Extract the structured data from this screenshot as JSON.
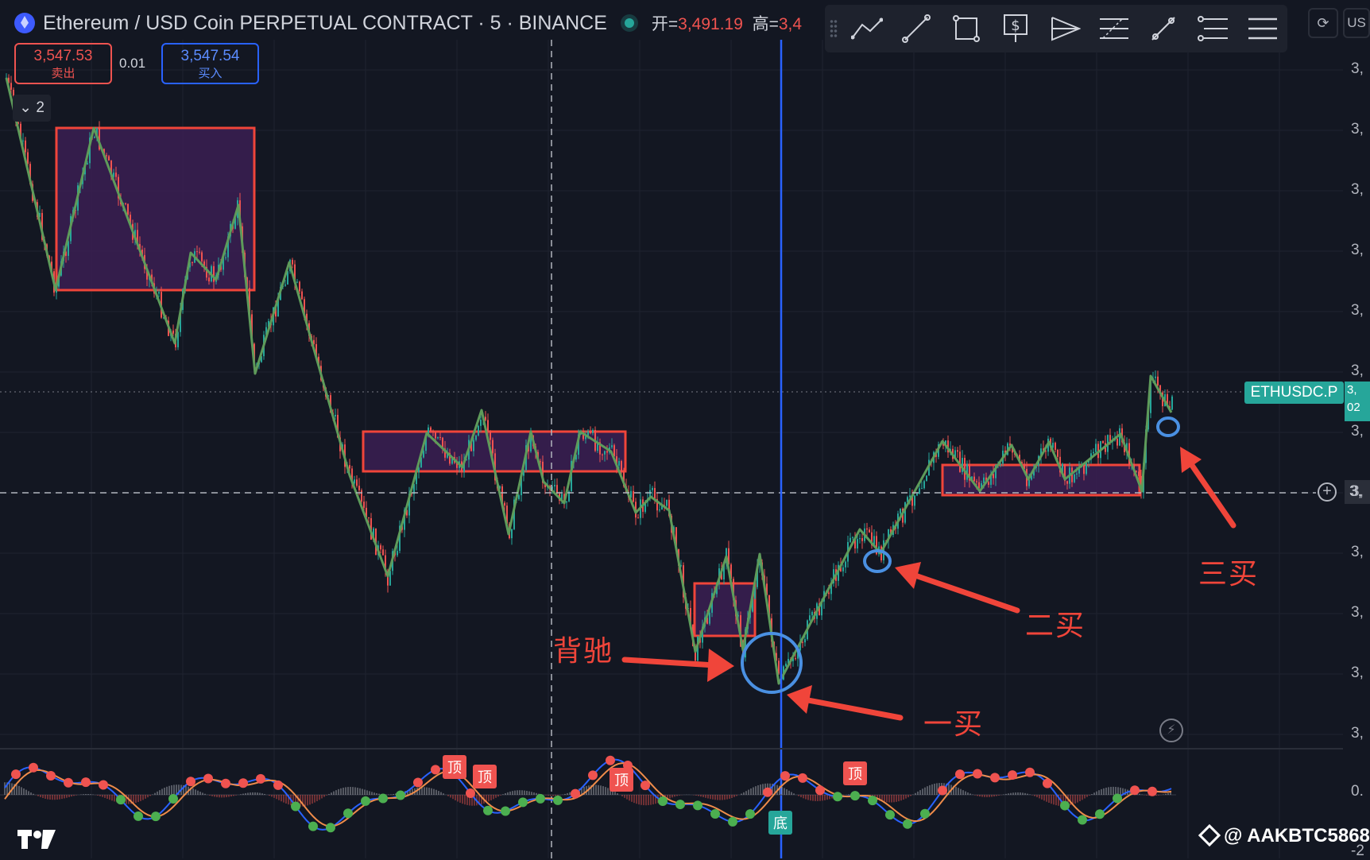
{
  "header": {
    "symbol_title": "Ethereum / USD Coin PERPETUAL CONTRACT · 5 · BINANCE",
    "ohlc_open_label": "开=",
    "ohlc_open_value": "3,491.19",
    "ohlc_high_label": "高=",
    "ohlc_high_value": "3,4"
  },
  "trade": {
    "sell_price": "3,547.53",
    "sell_label": "卖出",
    "spread": "0.01",
    "buy_price": "3,547.54",
    "buy_label": "买入"
  },
  "pane_collapse_label": "2",
  "toolbar": {
    "items": [
      "trend-line-icon",
      "ray-icon",
      "rectangle-icon",
      "long-position-icon",
      "pitchfork-icon",
      "fib-retracement-icon",
      "measure-icon",
      "fib-channel-icon",
      "more-menu-icon"
    ]
  },
  "top_right": {
    "truncated_label": "US"
  },
  "price_axis": {
    "ticks": [
      "3,",
      "3,",
      "3,",
      "3,",
      "3,",
      "3,",
      "3,",
      "3,",
      "3,",
      "3,",
      "3,",
      "3,"
    ],
    "indicator_zero": "0.",
    "indicator_bottom": "-2"
  },
  "ticker_tag": {
    "symbol": "ETHUSDC.P",
    "price_line1": "3,",
    "price_line2": "02"
  },
  "crosshair_price": "3,",
  "annotations": {
    "divergence": "背驰",
    "first_buy": "一买",
    "second_buy": "二买",
    "third_buy": "三买"
  },
  "indicator_labels": {
    "top": "顶",
    "bottom": "底"
  },
  "watermark": "@ AAKBTC5868",
  "colors": {
    "background": "#131722",
    "bull": "#26a69a",
    "bear": "#ef5350",
    "zone_border": "#f0453a",
    "zone_fill": "#3b1e52",
    "stroke_line": "#5e9b5a",
    "annotation_red": "#f0453a",
    "circle_blue": "#4a90e2",
    "crosshair_blue": "#2962ff"
  }
}
